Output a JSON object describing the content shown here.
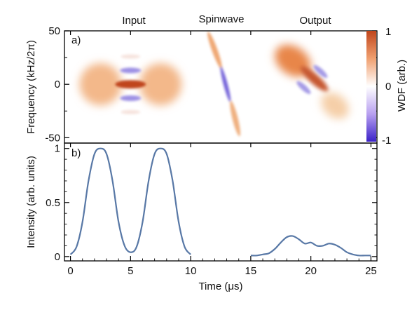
{
  "colors": {
    "curve": "#5878a6",
    "wdf_positive": "#c0451b",
    "wdf_negative": "#3a21c8",
    "wdf_zero": "#ffffff",
    "frame": "#000000"
  },
  "chart_data": [
    {
      "type": "heatmap",
      "panel_label": "a)",
      "section_titles": [
        "Input",
        "Spinwave",
        "Output"
      ],
      "ylabel": "Frequency (kHz/2π)",
      "xlim": [
        -0.5,
        25.5
      ],
      "ylim": [
        -55,
        50
      ],
      "y_ticks": [
        "50",
        "0",
        "-50"
      ],
      "y_tick_values": [
        50,
        0,
        -50
      ],
      "colorbar": {
        "label": "WDF (arb.)",
        "range": [
          -1,
          1
        ],
        "tick_labels": [
          "1",
          "0",
          "-1"
        ],
        "tick_values": [
          1,
          0,
          -1
        ]
      },
      "features": [
        {
          "name": "input-gaussian-left",
          "sign": "positive",
          "t": 2.5,
          "f": 0,
          "amplitude": 0.45
        },
        {
          "name": "input-gaussian-right",
          "sign": "positive",
          "t": 7.5,
          "f": 0,
          "amplitude": 0.45
        },
        {
          "name": "input-interference-center",
          "sign": "positive",
          "t": 5.0,
          "f": 0,
          "amplitude": 1.0
        },
        {
          "name": "input-interference-upper",
          "sign": "negative",
          "t": 5.0,
          "f": 13,
          "amplitude": 0.5
        },
        {
          "name": "input-interference-lower",
          "sign": "negative",
          "t": 5.0,
          "f": -13,
          "amplitude": 0.5
        },
        {
          "name": "input-interference-upper2",
          "sign": "positive",
          "t": 5.0,
          "f": 26,
          "amplitude": 0.15
        },
        {
          "name": "input-interference-lower2",
          "sign": "positive",
          "t": 5.0,
          "f": -26,
          "amplitude": 0.15
        },
        {
          "name": "spinwave-upper-lobe",
          "sign": "positive",
          "t": 12.0,
          "f": 32,
          "amplitude": 0.6
        },
        {
          "name": "spinwave-center",
          "sign": "negative",
          "t": 12.9,
          "f": 0,
          "amplitude": 0.7
        },
        {
          "name": "spinwave-lower-lobe",
          "sign": "positive",
          "t": 13.7,
          "f": -32,
          "amplitude": 0.55
        },
        {
          "name": "output-upper-lobe",
          "sign": "positive",
          "t": 18.5,
          "f": 22,
          "amplitude": 0.65
        },
        {
          "name": "output-center",
          "sign": "positive",
          "t": 20.3,
          "f": 5,
          "amplitude": 0.9
        },
        {
          "name": "output-lower-lobe",
          "sign": "positive",
          "t": 22.0,
          "f": -20,
          "amplitude": 0.25
        },
        {
          "name": "output-negative-upper",
          "sign": "negative",
          "t": 20.8,
          "f": 12,
          "amplitude": 0.45
        },
        {
          "name": "output-negative-lower",
          "sign": "negative",
          "t": 19.4,
          "f": -3,
          "amplitude": 0.45
        }
      ]
    },
    {
      "type": "line",
      "panel_label": "b)",
      "xlabel": "Time (μs)",
      "ylabel": "Intensity (arb. units)",
      "xlim": [
        -0.5,
        25.5
      ],
      "ylim": [
        -0.04,
        1.05
      ],
      "x_ticks": [
        "0",
        "5",
        "10",
        "15",
        "20",
        "25"
      ],
      "x_tick_values": [
        0,
        5,
        10,
        15,
        20,
        25
      ],
      "y_ticks": [
        "1",
        "0.5",
        "0"
      ],
      "y_tick_values": [
        1,
        0.5,
        0
      ],
      "series": [
        {
          "segment": "input",
          "x": [
            0,
            0.5,
            1,
            1.5,
            2,
            2.5,
            3,
            3.5,
            4,
            4.5,
            5,
            5.5,
            6,
            6.5,
            7,
            7.5,
            8,
            8.5,
            9,
            9.5,
            10
          ],
          "y": [
            0.02,
            0.09,
            0.32,
            0.7,
            0.95,
            1.0,
            0.95,
            0.7,
            0.32,
            0.1,
            0.04,
            0.09,
            0.32,
            0.7,
            0.95,
            1.0,
            0.95,
            0.7,
            0.32,
            0.09,
            0.02
          ]
        },
        {
          "segment": "output",
          "x": [
            15,
            15.5,
            16,
            16.5,
            17,
            17.5,
            18,
            18.5,
            19,
            19.5,
            20,
            20.5,
            21,
            21.5,
            22,
            22.5,
            23,
            23.5,
            24,
            24.5,
            25
          ],
          "y": [
            0.01,
            0.01,
            0.02,
            0.03,
            0.07,
            0.13,
            0.18,
            0.19,
            0.16,
            0.12,
            0.13,
            0.1,
            0.1,
            0.12,
            0.11,
            0.08,
            0.04,
            0.02,
            0.01,
            0.01,
            0.01
          ]
        }
      ]
    }
  ]
}
